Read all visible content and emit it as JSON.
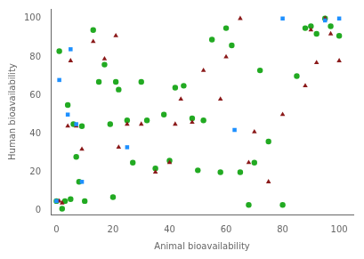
{
  "chart_data": {
    "type": "scatter",
    "xlabel": "Animal bioavailability",
    "ylabel": "Human bioavailability",
    "xlim": [
      -2,
      105
    ],
    "ylim": [
      -2,
      105
    ],
    "xticks": [
      0,
      20,
      40,
      60,
      80,
      100
    ],
    "yticks": [
      0,
      20,
      40,
      60,
      80,
      100
    ],
    "grid": false,
    "series": [
      {
        "color": "#22AA22",
        "marker": "circle",
        "x": [
          0,
          1,
          2,
          3,
          4,
          5,
          6,
          7,
          8,
          9,
          10,
          13,
          15,
          17,
          19,
          20,
          21,
          22,
          25,
          27,
          30,
          32,
          35,
          38,
          40,
          42,
          45,
          48,
          50,
          52,
          55,
          58,
          60,
          62,
          65,
          68,
          70,
          72,
          75,
          80,
          85,
          88,
          90,
          92,
          95,
          97,
          100
        ],
        "values": [
          5,
          83,
          1,
          5,
          55,
          6,
          45,
          28,
          15,
          44,
          5,
          94,
          67,
          76,
          45,
          7,
          67,
          63,
          47,
          25,
          67,
          47,
          22,
          50,
          26,
          64,
          65,
          48,
          21,
          47,
          89,
          20,
          95,
          86,
          20,
          3,
          25,
          73,
          36,
          3,
          70,
          95,
          96,
          92,
          100,
          96,
          91
        ]
      },
      {
        "color": "#8B1A1A",
        "marker": "triangle",
        "x": [
          1,
          2,
          4,
          5,
          7,
          9,
          13,
          17,
          21,
          22,
          25,
          30,
          35,
          40,
          42,
          44,
          48,
          52,
          58,
          60,
          65,
          68,
          70,
          75,
          80,
          88,
          90,
          92,
          95,
          97,
          100
        ],
        "values": [
          5,
          4,
          44,
          78,
          44,
          32,
          88,
          79,
          91,
          33,
          45,
          45,
          20,
          25,
          45,
          58,
          46,
          73,
          58,
          80,
          100,
          25,
          41,
          15,
          50,
          65,
          94,
          77,
          100,
          92,
          78
        ]
      },
      {
        "color": "#1E90FF",
        "marker": "square",
        "x": [
          0,
          1,
          4,
          5,
          7,
          9,
          25,
          63,
          80,
          95,
          100
        ],
        "values": [
          5,
          68,
          50,
          84,
          45,
          15,
          33,
          42,
          100,
          99,
          100
        ]
      }
    ]
  }
}
